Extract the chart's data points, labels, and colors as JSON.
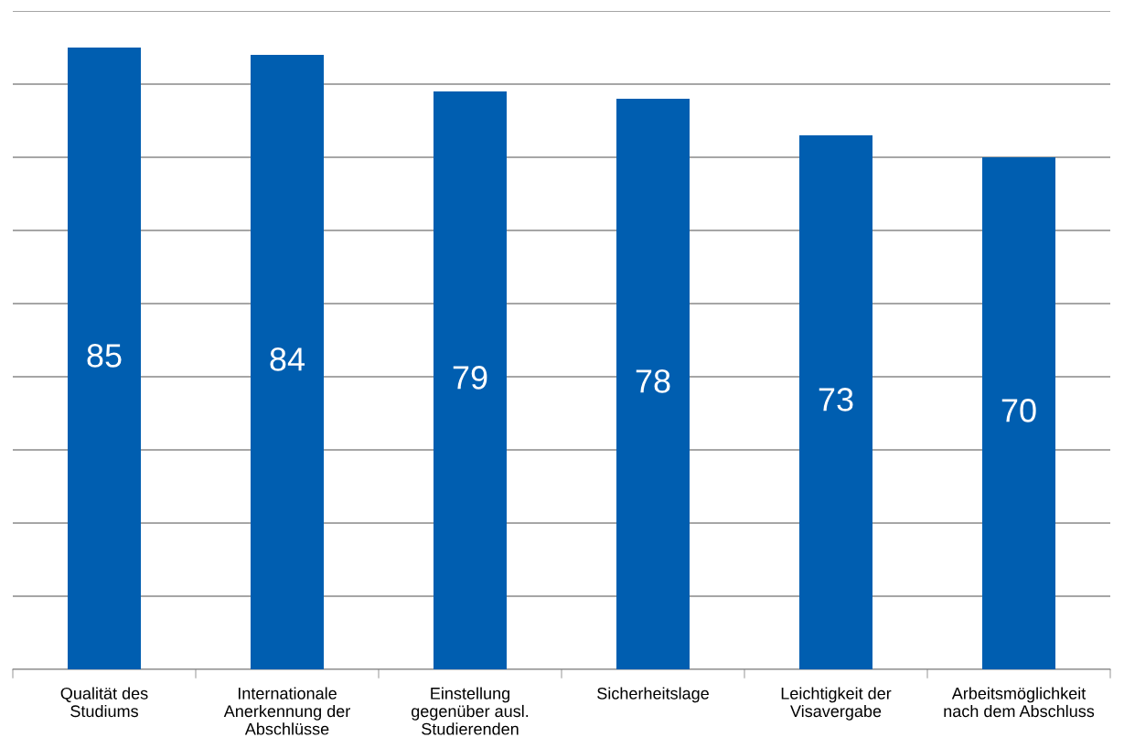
{
  "chart_data": {
    "type": "bar",
    "categories": [
      "Qualität des\nStudiums",
      "Internationale\nAnerkennung der\nAbschlüsse",
      "Einstellung\ngegenüber ausl.\nStudierenden",
      "Sicherheitslage",
      "Leichtigkeit der\nVisavergabe",
      "Arbeitsmöglichkeit\nnach dem Abschluss"
    ],
    "values": [
      85,
      84,
      79,
      78,
      73,
      70
    ],
    "color": "#005eb0",
    "data_labels": true,
    "ylim": [
      0,
      90
    ],
    "yticks": [
      {
        "value": 0,
        "label": null
      },
      {
        "value": 10,
        "label": null
      },
      {
        "value": 20,
        "label": null
      },
      {
        "value": 30,
        "label": null
      },
      {
        "value": 40,
        "label": null
      },
      {
        "value": 50,
        "label": null
      },
      {
        "value": 60,
        "label": null
      },
      {
        "value": 70,
        "label": null
      },
      {
        "value": 80,
        "label": null
      },
      {
        "value": 90,
        "label": null
      }
    ],
    "grid": "y",
    "tick_labels": "x"
  }
}
